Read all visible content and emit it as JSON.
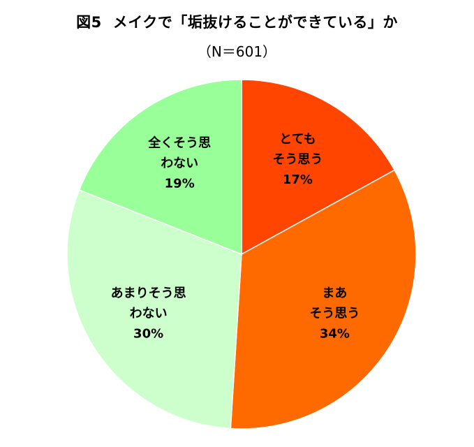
{
  "figure": {
    "title_prefix": "図5",
    "title": "メイクで「垢抜けることができている」か",
    "subtitle": "（N＝601）"
  },
  "chart_data": {
    "type": "pie",
    "title": "図5　メイクで「垢抜けることができている」か",
    "subtitle": "（N＝601）",
    "start": "12 o'clock",
    "direction": "clockwise",
    "slices": [
      {
        "label_lines": [
          "とても",
          "そう思う"
        ],
        "value": 17,
        "pct_label": "17%",
        "color": "#FF4500"
      },
      {
        "label_lines": [
          "まあ",
          "そう思う"
        ],
        "value": 34,
        "pct_label": "34%",
        "color": "#FF6A00"
      },
      {
        "label_lines": [
          "あまりそう思",
          "わない"
        ],
        "value": 30,
        "pct_label": "30%",
        "color": "#CCFFCC"
      },
      {
        "label_lines": [
          "全くそう思",
          "わない"
        ],
        "value": 19,
        "pct_label": "19%",
        "color": "#99FF99"
      }
    ]
  }
}
